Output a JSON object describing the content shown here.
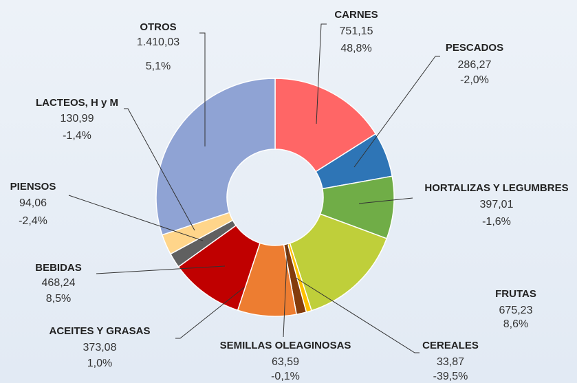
{
  "chart_data": {
    "type": "donut",
    "categories": [
      "CARNES",
      "PESCADOS",
      "HORTALIZAS Y LEGUMBRES",
      "FRUTAS",
      "CEREALES",
      "SEMILLAS OLEAGINOSAS",
      "ACEITES Y GRASAS",
      "BEBIDAS",
      "PIENSOS",
      "LACTEOS, H y M",
      "OTROS"
    ],
    "values": [
      751.15,
      286.27,
      397.01,
      675.23,
      33.87,
      63.59,
      373.08,
      468.24,
      94.06,
      130.99,
      1410.03
    ],
    "value_labels": [
      "751,15",
      "286,27",
      "397,01",
      "675,23",
      "33,87",
      "63,59",
      "373,08",
      "468,24",
      "94,06",
      "130,99",
      "1.410,03"
    ],
    "change_labels": [
      "48,8%",
      "-2,0%",
      "-1,6%",
      "8,6%",
      "-39,5%",
      "-0,1%",
      "1,0%",
      "8,5%",
      "-2,4%",
      "-1,4%",
      "5,1%"
    ],
    "colors": [
      "#ff6666",
      "#2e75b6",
      "#70ad47",
      "#bfcf3a",
      "#ffc000",
      "#843c0c",
      "#ed7d31",
      "#c00000",
      "#606060",
      "#ffd58a",
      "#8fa3d4"
    ]
  }
}
